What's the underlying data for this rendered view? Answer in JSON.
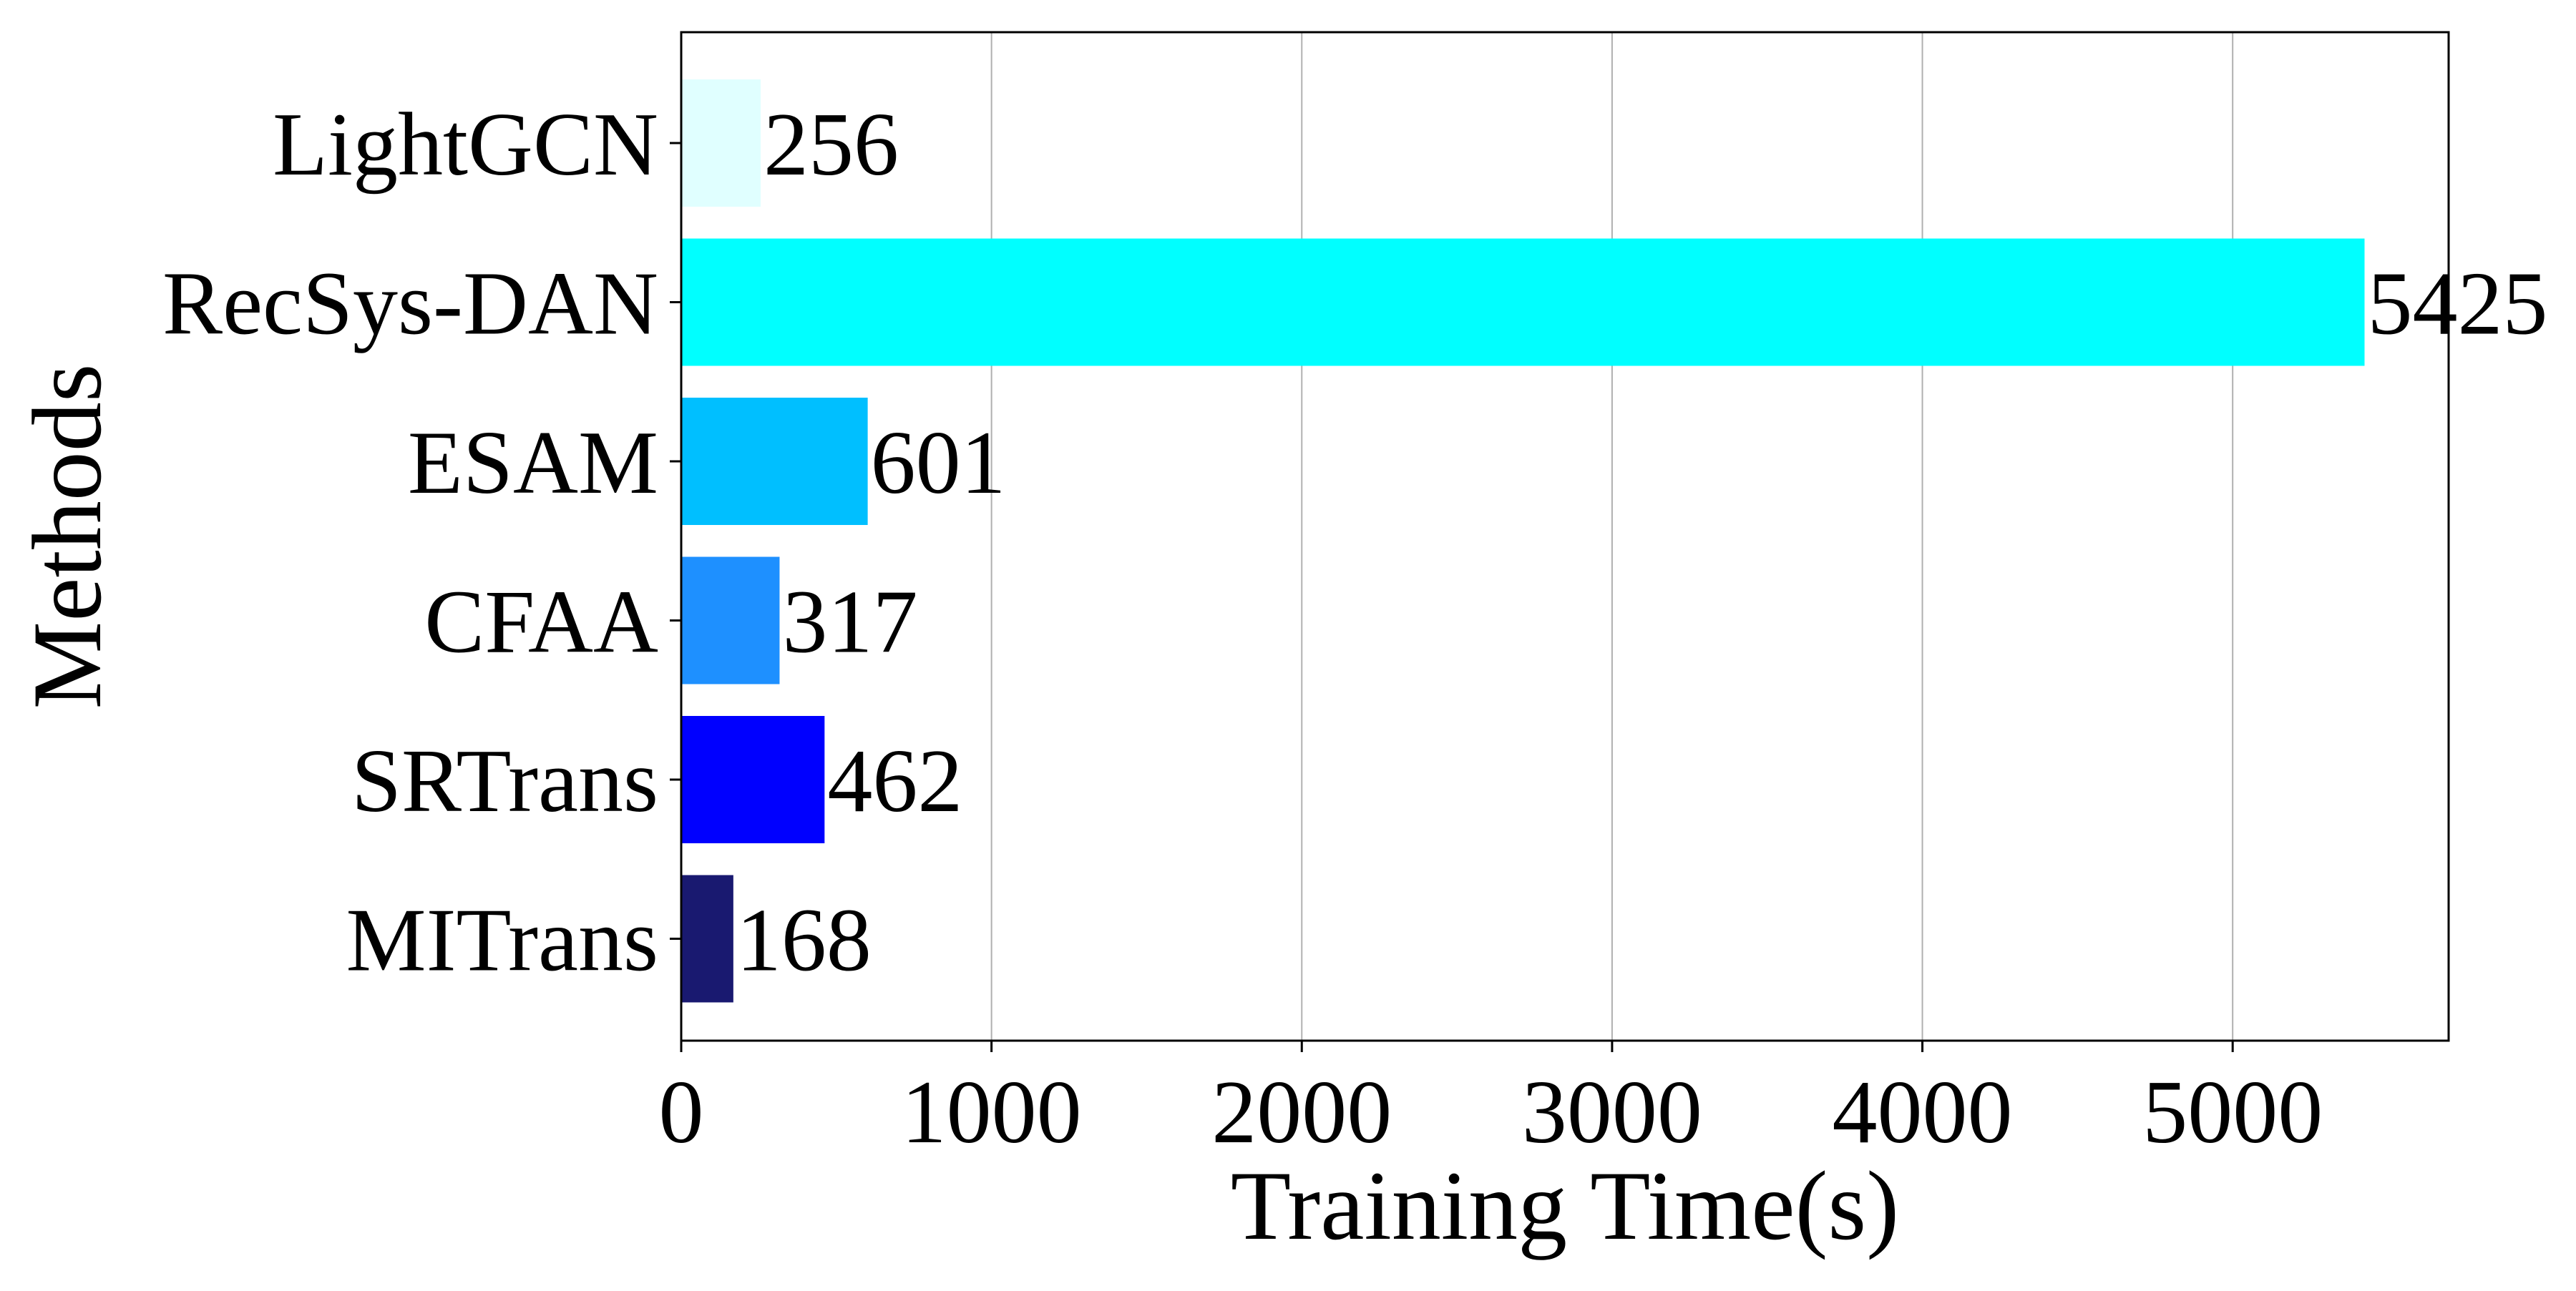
{
  "chart_data": {
    "type": "bar",
    "orientation": "horizontal",
    "categories": [
      "LightGCN",
      "RecSys-DAN",
      "ESAM",
      "CFAA",
      "SRTrans",
      "MITrans"
    ],
    "values": [
      256,
      5425,
      601,
      317,
      462,
      168
    ],
    "data_labels": [
      "256",
      "5425",
      "601",
      "317",
      "462",
      "168"
    ],
    "colors": [
      "#e0ffff",
      "#00ffff",
      "#00bfff",
      "#1e90ff",
      "#0000ff",
      "#191970"
    ],
    "xlabel": "Training Time(s)",
    "ylabel": "Methods",
    "xlim": [
      0,
      5696
    ],
    "xticks": [
      0,
      1000,
      2000,
      3000,
      4000,
      5000
    ],
    "xtick_labels": [
      "0",
      "1000",
      "2000",
      "3000",
      "4000",
      "5000"
    ],
    "grid": "x-axis vertical gridlines"
  }
}
